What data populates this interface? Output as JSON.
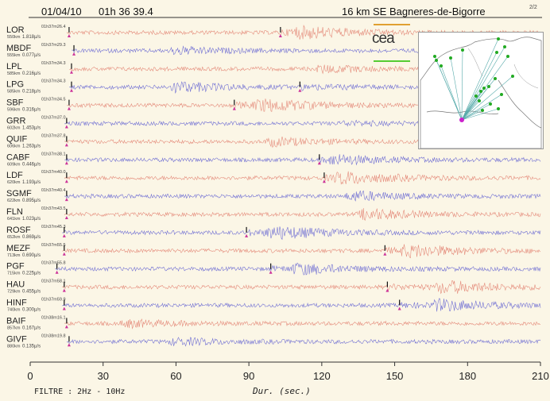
{
  "header": {
    "date": "01/04/10",
    "time": "01h 36 39.4",
    "location": "16 km SE Bagneres-de-Bigorre",
    "page": "2/2"
  },
  "logo": "cea",
  "filter": "FILTRE : 2Hz - 10Hz",
  "chart_data": {
    "type": "line",
    "xlabel": "Dur.   (sec.)",
    "xlim": [
      0,
      210
    ],
    "xticks": [
      0,
      30,
      60,
      90,
      120,
      150,
      180,
      210
    ],
    "stations": [
      {
        "name": "LOR",
        "time": "01h37m26.4",
        "dist": "550km",
        "amp": "1.818µ/s",
        "color": "#e07a6a",
        "p": 16,
        "s": 103,
        "burst": 110,
        "strength": 1.0
      },
      {
        "name": "MBDF",
        "time": "01h37m29.3",
        "dist": "555km",
        "amp": "0.077µ/s",
        "color": "#5a5ad0",
        "p": 18,
        "s": null,
        "burst": 60,
        "strength": 0.6
      },
      {
        "name": "LPL",
        "time": "01h37m34.3",
        "dist": "585km",
        "amp": "0.216µ/s",
        "color": "#e07a6a",
        "p": 17,
        "s": null,
        "burst": 120,
        "strength": 0.6
      },
      {
        "name": "LPG",
        "time": "01h37m34.3",
        "dist": "585km",
        "amp": "0.218µ/s",
        "color": "#5a5ad0",
        "p": 17,
        "s": 111,
        "burst": 60,
        "strength": 0.9
      },
      {
        "name": "SBF",
        "time": "01h37m34.5",
        "dist": "596km",
        "amp": "0.316µ/s",
        "color": "#e07a6a",
        "p": 16,
        "s": 84,
        "burst": 95,
        "strength": 1.0
      },
      {
        "name": "GRR",
        "time": "01h37m37.0",
        "dist": "602km",
        "amp": "1.453µ/s",
        "color": "#5a5ad0",
        "p": 15,
        "s": null,
        "burst": 130,
        "strength": 0.3
      },
      {
        "name": "QUIF",
        "time": "01h37m37.8",
        "dist": "606km",
        "amp": "1.263µ/s",
        "color": "#e07a6a",
        "p": 15,
        "s": null,
        "burst": 100,
        "strength": 0.7
      },
      {
        "name": "CABF",
        "time": "01h37m38.1",
        "dist": "609km",
        "amp": "0.446µ/s",
        "color": "#5a5ad0",
        "p": 15,
        "s": 119,
        "burst": 125,
        "strength": 0.7
      },
      {
        "name": "LDF",
        "time": "01h37m40.0",
        "dist": "620km",
        "amp": "1.193µ/s",
        "color": "#e07a6a",
        "p": 15,
        "s": 121,
        "burst": 128,
        "strength": 0.9
      },
      {
        "name": "SGMF",
        "time": "01h37m40.4",
        "dist": "622km",
        "amp": "0.895µ/s",
        "color": "#5a5ad0",
        "p": 15,
        "s": null,
        "burst": 133,
        "strength": 0.8
      },
      {
        "name": "FLN",
        "time": "01h37m43.5",
        "dist": "641km",
        "amp": "1.023µ/s",
        "color": "#e07a6a",
        "p": 15,
        "s": null,
        "burst": 138,
        "strength": 1.0
      },
      {
        "name": "ROSF",
        "time": "01h37m45.3",
        "dist": "652km",
        "amp": "0.869µ/s",
        "color": "#5a5ad0",
        "p": 14,
        "s": 89,
        "burst": 100,
        "strength": 1.0
      },
      {
        "name": "MEZF",
        "time": "01h37m55.5",
        "dist": "713km",
        "amp": "0.690µ/s",
        "color": "#e07a6a",
        "p": 14,
        "s": 146,
        "burst": 155,
        "strength": 1.0
      },
      {
        "name": "PGF",
        "time": "01h37m55.8",
        "dist": "715km",
        "amp": "0.225µ/s",
        "color": "#5a5ad0",
        "p": 11,
        "s": 99,
        "burst": 110,
        "strength": 0.8
      },
      {
        "name": "HAU",
        "time": "01h37m58.1",
        "dist": "729km",
        "amp": "0.455µ/s",
        "color": "#e07a6a",
        "p": 14,
        "s": 147,
        "burst": 170,
        "strength": 1.0
      },
      {
        "name": "HINF",
        "time": "01h37m59.9",
        "dist": "740km",
        "amp": "0.300µ/s",
        "color": "#5a5ad0",
        "p": 14,
        "s": 152,
        "burst": 168,
        "strength": 0.9
      },
      {
        "name": "BAIF",
        "time": "01h38m16.1",
        "dist": "857km",
        "amp": "0.167µ/s",
        "color": "#e07a6a",
        "p": 15,
        "s": null,
        "burst": 40,
        "strength": 0.6
      },
      {
        "name": "GIVF",
        "time": "01h38m19.8",
        "dist": "880km",
        "amp": "0.135µ/s",
        "color": "#5a5ad0",
        "p": 16,
        "s": null,
        "burst": 60,
        "strength": 0.6
      }
    ]
  }
}
